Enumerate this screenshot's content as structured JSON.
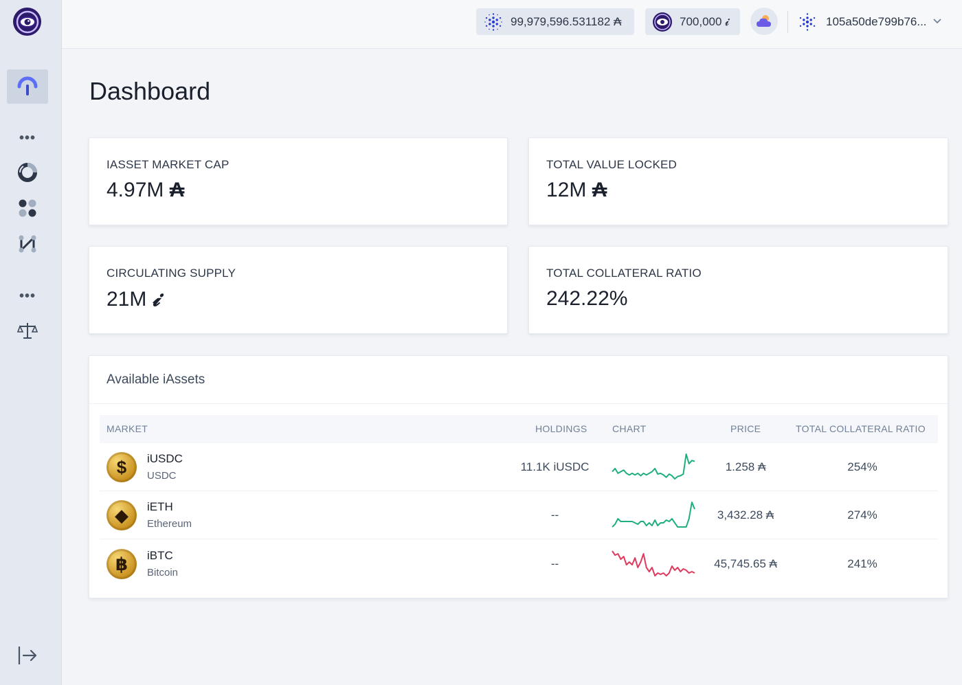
{
  "app": {
    "title": "Dashboard"
  },
  "header": {
    "ada_balance": "99,979,596.531182 ₳",
    "indy_balance": "700,000 𝓲",
    "wallet_address": "105a50de799b76...",
    "chevron": "⌄"
  },
  "sidebar": {
    "dots": "•••",
    "icons": [
      "dashboard-gauge-icon",
      "donut-chart-icon",
      "apps-grid-icon",
      "swap-paths-icon",
      "governance-scale-icon",
      "logout-arrow-icon"
    ]
  },
  "stats": {
    "market_cap": {
      "label": "IASSET MARKET CAP",
      "value": "4.97M",
      "unit": "₳"
    },
    "tvl": {
      "label": "TOTAL VALUE LOCKED",
      "value": "12M",
      "unit": "₳"
    },
    "supply": {
      "label": "CIRCULATING SUPPLY",
      "value": "21M",
      "unit": "𝓲"
    },
    "collateral": {
      "label": "TOTAL COLLATERAL RATIO",
      "value": "242.22%"
    }
  },
  "assets": {
    "title": "Available iAssets",
    "columns": {
      "market": "MARKET",
      "holdings": "HOLDINGS",
      "chart": "CHART",
      "price": "PRICE",
      "ratio": "TOTAL COLLATERAL RATIO"
    },
    "rows": [
      {
        "symbol": "iUSDC",
        "name": "USDC",
        "coin_glyph": "$",
        "holdings": "11.1K iUSDC",
        "price": "1.258 ₳",
        "ratio": "254%",
        "trend_color": "#1fae7e",
        "spark": [
          40,
          44,
          38,
          40,
          42,
          38,
          36,
          38,
          36,
          38,
          35,
          38,
          36,
          38,
          40,
          44,
          37,
          38,
          36,
          33,
          37,
          35,
          31,
          34,
          35,
          37,
          62,
          50,
          54,
          53
        ]
      },
      {
        "symbol": "iETH",
        "name": "Ethereum",
        "coin_glyph": "◆",
        "holdings": "--",
        "price": "3,432.28 ₳",
        "ratio": "274%",
        "trend_color": "#1fae7e",
        "spark": [
          40,
          42,
          46,
          44,
          44,
          44,
          44,
          44,
          43,
          42,
          44,
          44,
          41,
          43,
          41,
          45,
          41,
          43,
          43,
          45,
          44,
          46,
          43,
          40,
          40,
          40,
          40,
          46,
          58,
          53
        ]
      },
      {
        "symbol": "iBTC",
        "name": "Bitcoin",
        "coin_glyph": "฿",
        "holdings": "--",
        "price": "45,745.65 ₳",
        "ratio": "241%",
        "trend_color": "#e03a5e",
        "spark": [
          58,
          55,
          56,
          52,
          54,
          48,
          50,
          48,
          53,
          46,
          50,
          56,
          46,
          43,
          46,
          40,
          42,
          41,
          42,
          40,
          42,
          47,
          44,
          46,
          43,
          45,
          44,
          42,
          43,
          42
        ]
      }
    ]
  }
}
